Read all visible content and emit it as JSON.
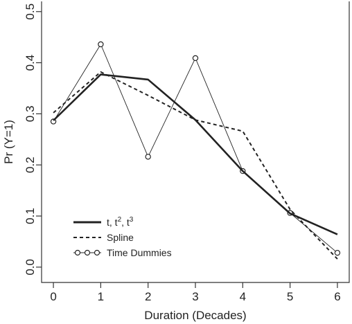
{
  "chart_data": {
    "type": "line",
    "xlabel": "Duration (Decades)",
    "ylabel": "Pr (Y=1)",
    "xlim": [
      -0.25,
      6.25
    ],
    "ylim": [
      -0.03,
      0.52
    ],
    "x_ticks": [
      0,
      1,
      2,
      3,
      4,
      5,
      6
    ],
    "y_ticks": [
      0.0,
      0.1,
      0.2,
      0.3,
      0.4,
      0.5
    ],
    "y_tick_labels": [
      "0.0",
      "0.1",
      "0.2",
      "0.3",
      "0.4",
      "0.5"
    ],
    "grid": false,
    "legend_position": "bottom-left",
    "series": [
      {
        "name": "t, t², t³",
        "legend_label": {
          "base": "t, t",
          "sup1": "2",
          "mid": ", t",
          "sup2": "3"
        },
        "style": "solid-thick",
        "x": [
          0,
          1,
          2,
          3,
          4,
          5,
          6
        ],
        "y": [
          0.287,
          0.377,
          0.367,
          0.288,
          0.188,
          0.105,
          0.064
        ]
      },
      {
        "name": "Spline",
        "style": "dashed",
        "x": [
          0,
          1,
          2,
          3,
          4,
          5,
          6
        ],
        "y": [
          0.302,
          0.382,
          0.336,
          0.288,
          0.266,
          0.113,
          0.016
        ]
      },
      {
        "name": "Time Dummies",
        "style": "thin-with-circles",
        "x": [
          0,
          1,
          2,
          3,
          4,
          5,
          6
        ],
        "y": [
          0.285,
          0.436,
          0.216,
          0.409,
          0.188,
          0.106,
          0.028
        ]
      }
    ]
  }
}
